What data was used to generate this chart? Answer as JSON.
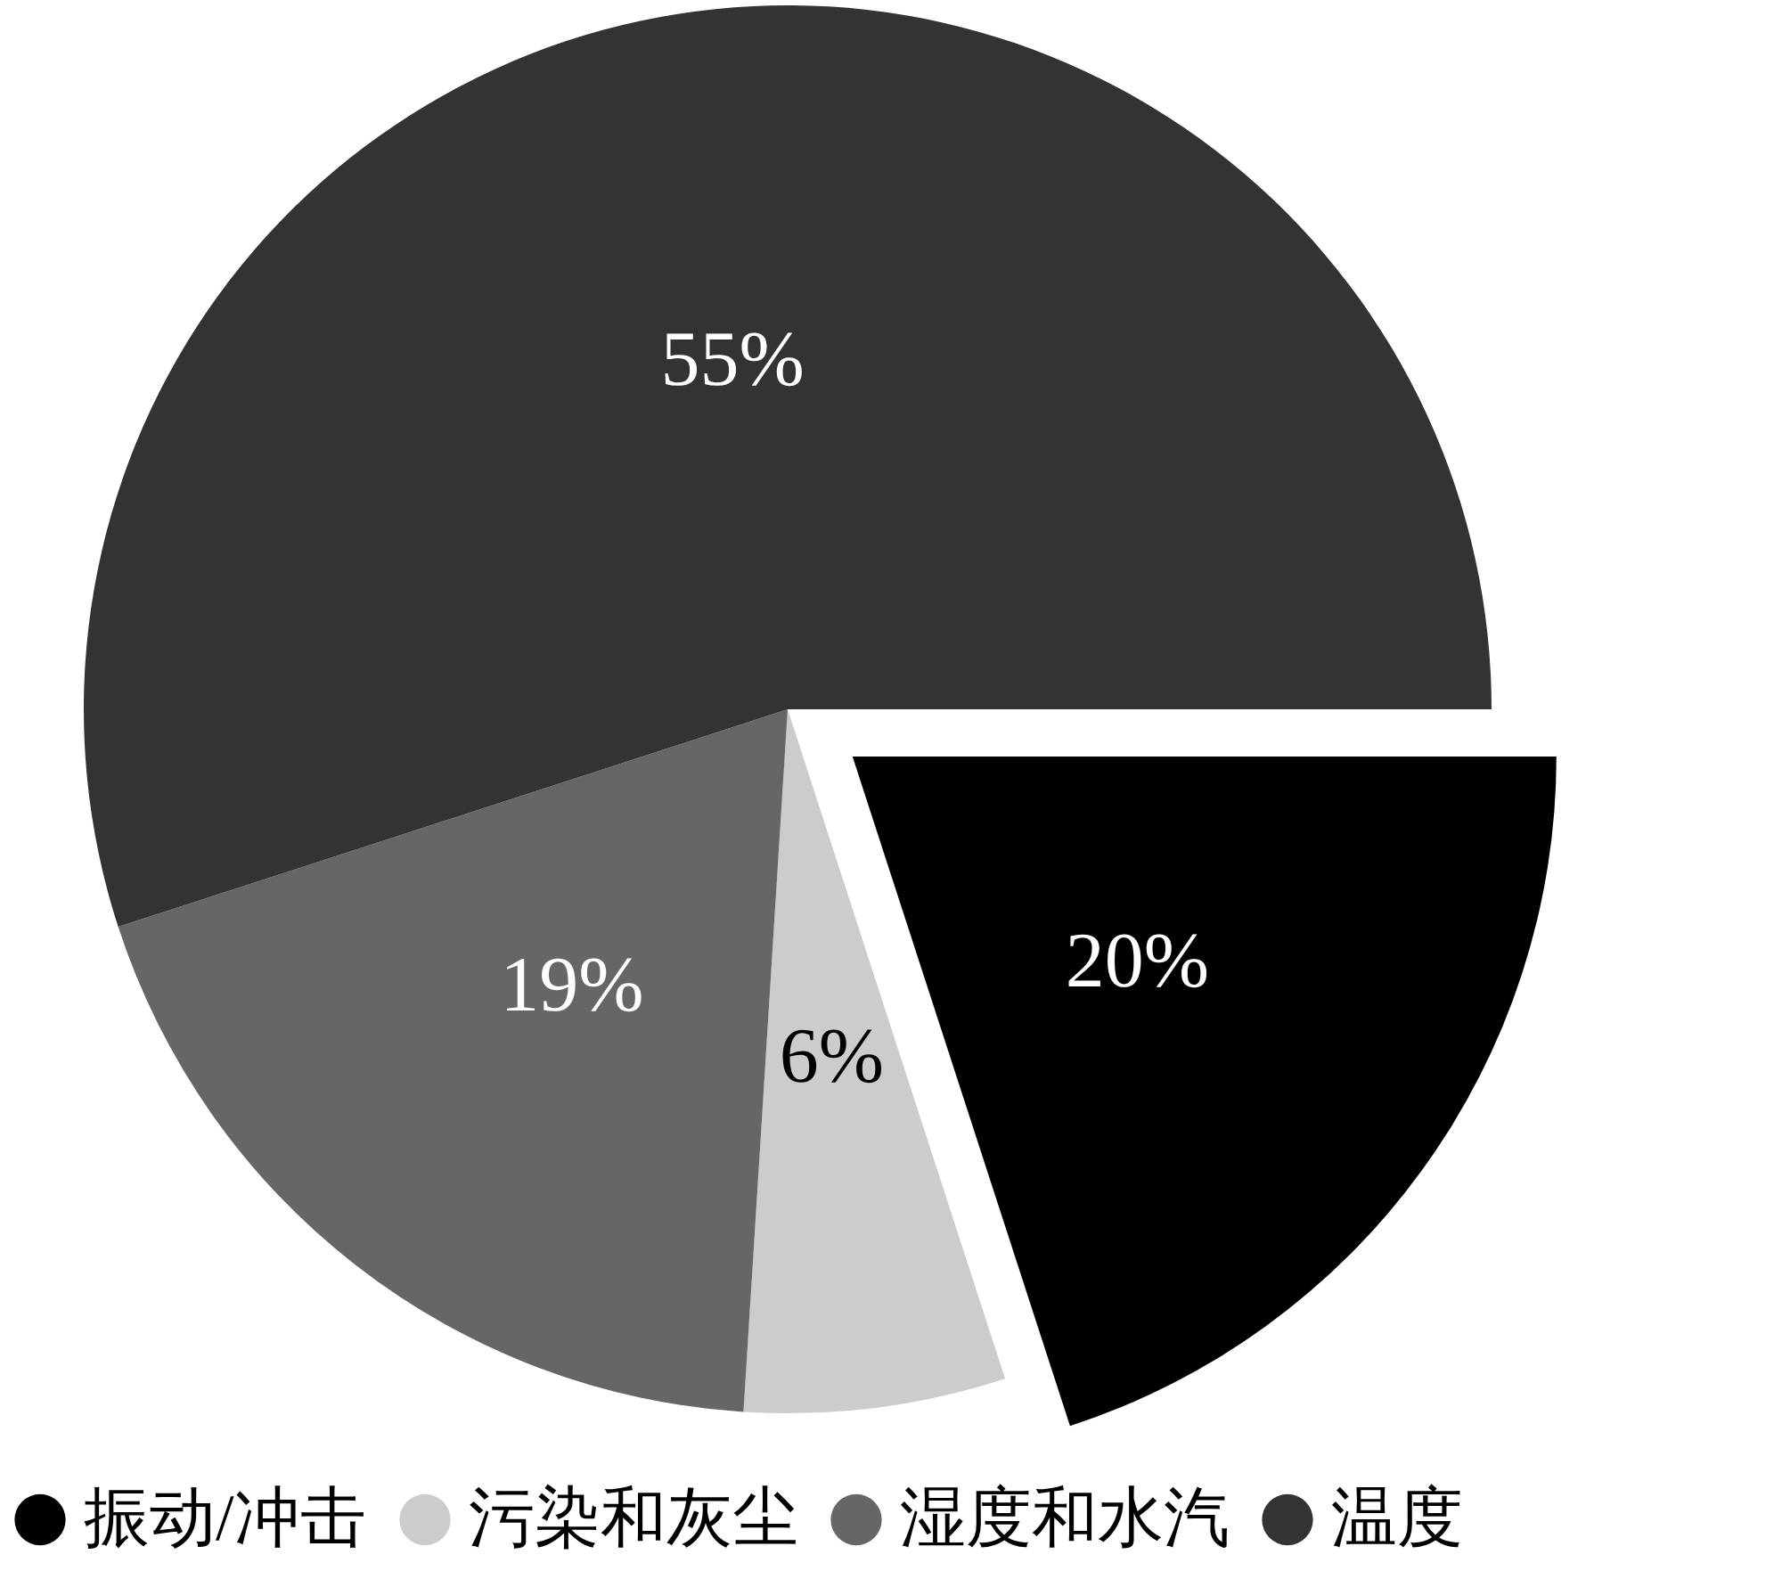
{
  "chart_data": {
    "type": "pie",
    "categories": [
      "振动/冲击",
      "污染和灰尘",
      "湿度和水汽",
      "温度"
    ],
    "values": [
      20,
      6,
      19,
      55
    ],
    "colors": [
      "#000000",
      "#cccccc",
      "#666666",
      "#333333"
    ],
    "value_labels": [
      "20%",
      "6%",
      "19%",
      "55%"
    ],
    "legend": "bottom"
  }
}
